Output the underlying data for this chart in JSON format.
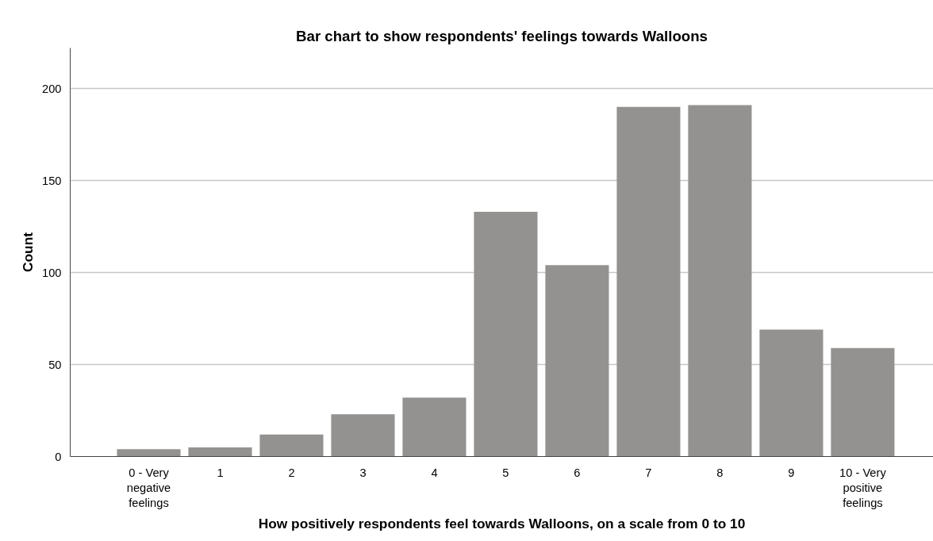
{
  "chart_data": {
    "type": "bar",
    "title": "Bar chart to show respondents' feelings towards Walloons",
    "xlabel": "How positively respondents feel towards Walloons, on a scale from 0 to 10",
    "ylabel": "Count",
    "categories": [
      "0 - Very negative feelings",
      "1",
      "2",
      "3",
      "4",
      "5",
      "6",
      "7",
      "8",
      "9",
      "10 - Very positive feelings"
    ],
    "values": [
      4,
      5,
      12,
      23,
      32,
      133,
      104,
      190,
      191,
      69,
      59
    ],
    "color": "#949290",
    "ylim": [
      0,
      222
    ],
    "yticks": [
      0,
      50,
      100,
      150,
      200
    ],
    "grid": "y"
  }
}
